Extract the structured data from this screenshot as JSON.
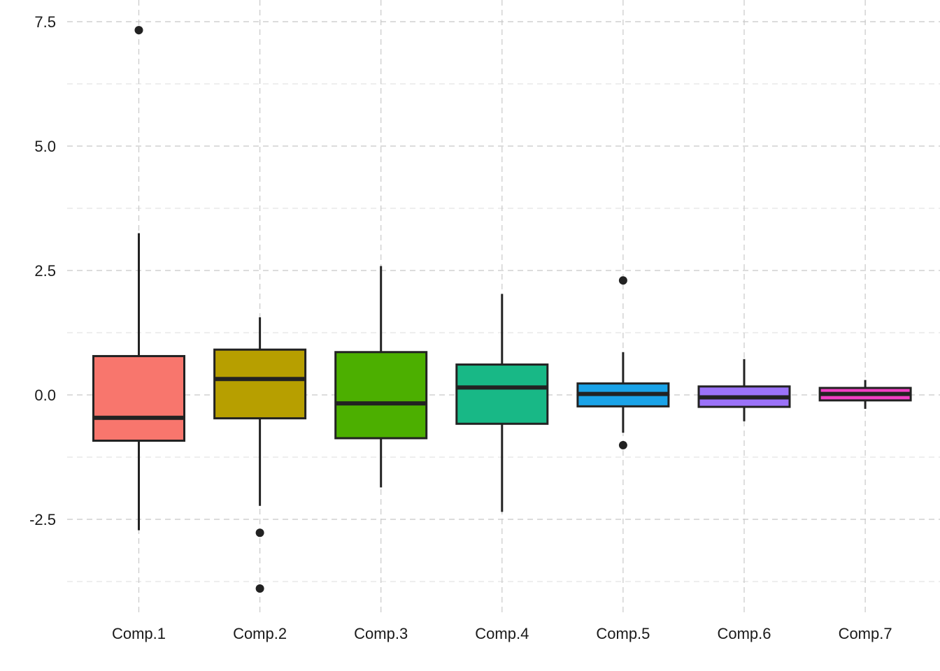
{
  "chart_data": {
    "type": "boxplot",
    "title": "",
    "xlabel": "",
    "ylabel": "",
    "ylim": [
      -4.45,
      7.95
    ],
    "y_ticks": [
      -2.5,
      0.0,
      2.5,
      5.0,
      7.5
    ],
    "y_tick_labels": [
      "-2.5",
      "0.0",
      "2.5",
      "5.0",
      "7.5"
    ],
    "y_minor_ticks": [
      -3.75,
      -1.25,
      1.25,
      3.75,
      6.25
    ],
    "grid": true,
    "grid_style": "dashed",
    "legend": "none",
    "categories": [
      "Comp.1",
      "Comp.2",
      "Comp.3",
      "Comp.4",
      "Comp.5",
      "Comp.6",
      "Comp.7"
    ],
    "boxes": [
      {
        "name": "Comp.1",
        "color": "#F8766D",
        "whisker_low": -2.72,
        "q1": -0.92,
        "median": -0.46,
        "q3": 0.78,
        "whisker_high": 3.25,
        "outliers": [
          7.33
        ]
      },
      {
        "name": "Comp.2",
        "color": "#B79F00",
        "whisker_low": -2.23,
        "q1": -0.47,
        "median": 0.32,
        "q3": 0.91,
        "whisker_high": 1.56,
        "outliers": [
          -2.77,
          -3.89
        ]
      },
      {
        "name": "Comp.3",
        "color": "#4CAF00",
        "whisker_low": -1.86,
        "q1": -0.87,
        "median": -0.17,
        "q3": 0.86,
        "whisker_high": 2.59,
        "outliers": []
      },
      {
        "name": "Comp.4",
        "color": "#18B886",
        "whisker_low": -2.35,
        "q1": -0.58,
        "median": 0.15,
        "q3": 0.61,
        "whisker_high": 2.03,
        "outliers": []
      },
      {
        "name": "Comp.5",
        "color": "#1AA3E8",
        "whisker_low": -0.76,
        "q1": -0.23,
        "median": 0.02,
        "q3": 0.23,
        "whisker_high": 0.86,
        "outliers": [
          2.3,
          -1.01
        ]
      },
      {
        "name": "Comp.6",
        "color": "#9B72F8",
        "whisker_low": -0.53,
        "q1": -0.24,
        "median": -0.05,
        "q3": 0.17,
        "whisker_high": 0.72,
        "outliers": []
      },
      {
        "name": "Comp.7",
        "color": "#F23FC4",
        "whisker_low": -0.28,
        "q1": -0.11,
        "median": 0.02,
        "q3": 0.14,
        "whisker_high": 0.3,
        "outliers": []
      }
    ]
  }
}
